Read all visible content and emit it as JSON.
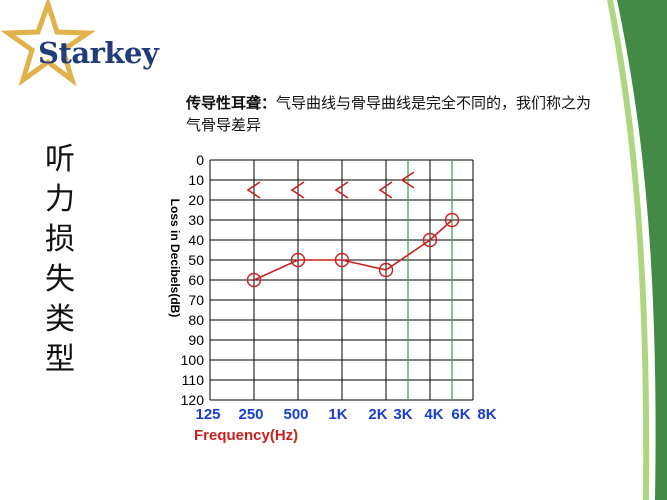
{
  "logo": {
    "text": "Starkey"
  },
  "side_title": [
    "听",
    "力",
    "损",
    "失",
    "类",
    "型"
  ],
  "description": {
    "term": "传导性耳聋：",
    "text": "气导曲线与骨导曲线是完全不同的，我们称之为气骨导差异"
  },
  "colors": {
    "brand_blue": "#1f3d7a",
    "star_gold": "#e2b24a",
    "curve_red": "#cc1f1f",
    "xlabel_blue": "#1a3fcf",
    "xlabel_red": "#cc1f1f",
    "accent_green": "#3aa04a",
    "deco_green": "#2e7d32"
  },
  "chart_data": {
    "type": "line",
    "xlabel": "Frequency(Hz)",
    "ylabel": "Loss in Decibels(dB)",
    "y_ticks": [
      0,
      10,
      20,
      30,
      40,
      50,
      60,
      70,
      80,
      90,
      100,
      110,
      120
    ],
    "ylim": [
      0,
      120
    ],
    "y_inverted": true,
    "x_tick_labels": [
      "125",
      "250",
      "500",
      "1K",
      "2K",
      "3K",
      "4K",
      "6K",
      "8K"
    ],
    "grid": true,
    "series": [
      {
        "marker": "circle",
        "points": [
          {
            "x": "250",
            "y": 60
          },
          {
            "x": "500",
            "y": 50
          },
          {
            "x": "1K",
            "y": 50
          },
          {
            "x": "2K",
            "y": 55
          },
          {
            "x": "4K",
            "y": 40
          },
          {
            "x": "6K",
            "y": 30
          }
        ]
      },
      {
        "marker": "bracket-left",
        "points": [
          {
            "x": "250",
            "y": 15
          },
          {
            "x": "500",
            "y": 15
          },
          {
            "x": "1K",
            "y": 15
          },
          {
            "x": "2K",
            "y": 15
          },
          {
            "x": "3K",
            "y": 10
          }
        ]
      }
    ]
  }
}
